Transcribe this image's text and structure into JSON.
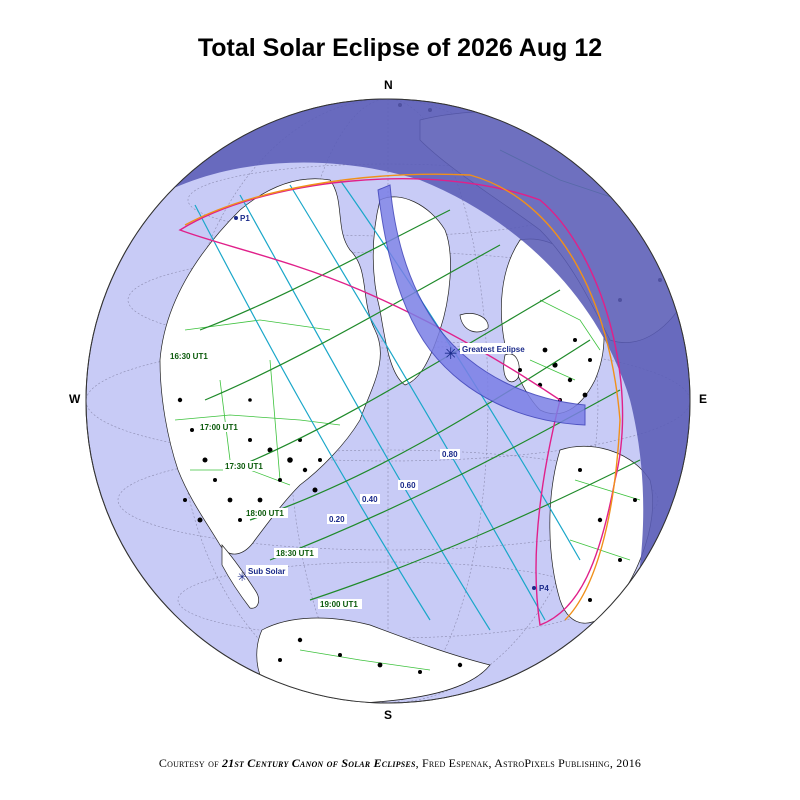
{
  "title": "Total Solar Eclipse of  2026 Aug 12",
  "directions": {
    "north": "N",
    "south": "S",
    "west": "W",
    "east": "E"
  },
  "labels": {
    "greatest_eclipse": "Greatest Eclipse",
    "sub_solar": "Sub Solar",
    "p1": "P1",
    "p4": "P4"
  },
  "time_labels": [
    "16:30 UT1",
    "17:00 UT1",
    "17:30 UT1",
    "18:00 UT1",
    "18:30 UT1",
    "19:00 UT1"
  ],
  "magnitude_labels": [
    "0.20",
    "0.40",
    "0.60",
    "0.80"
  ],
  "credit": {
    "prefix": "Courtesy of ",
    "book": "21st Century Canon of Solar Eclipses",
    "suffix": ", Fred Espenak, AstroPixels Publishing, 2016"
  },
  "colors": {
    "globe_day": "#c8cbf6",
    "globe_night": "#5a5cb6",
    "land": "#ffffff",
    "totality_path": "#7b7fe6",
    "penumbra_limit": "#e0208a",
    "rise_set_curve": "#f0901a",
    "magnitude_lines": "#1aa7c9",
    "time_lines": "#1f8a2a",
    "borders": "#3dc23d"
  }
}
